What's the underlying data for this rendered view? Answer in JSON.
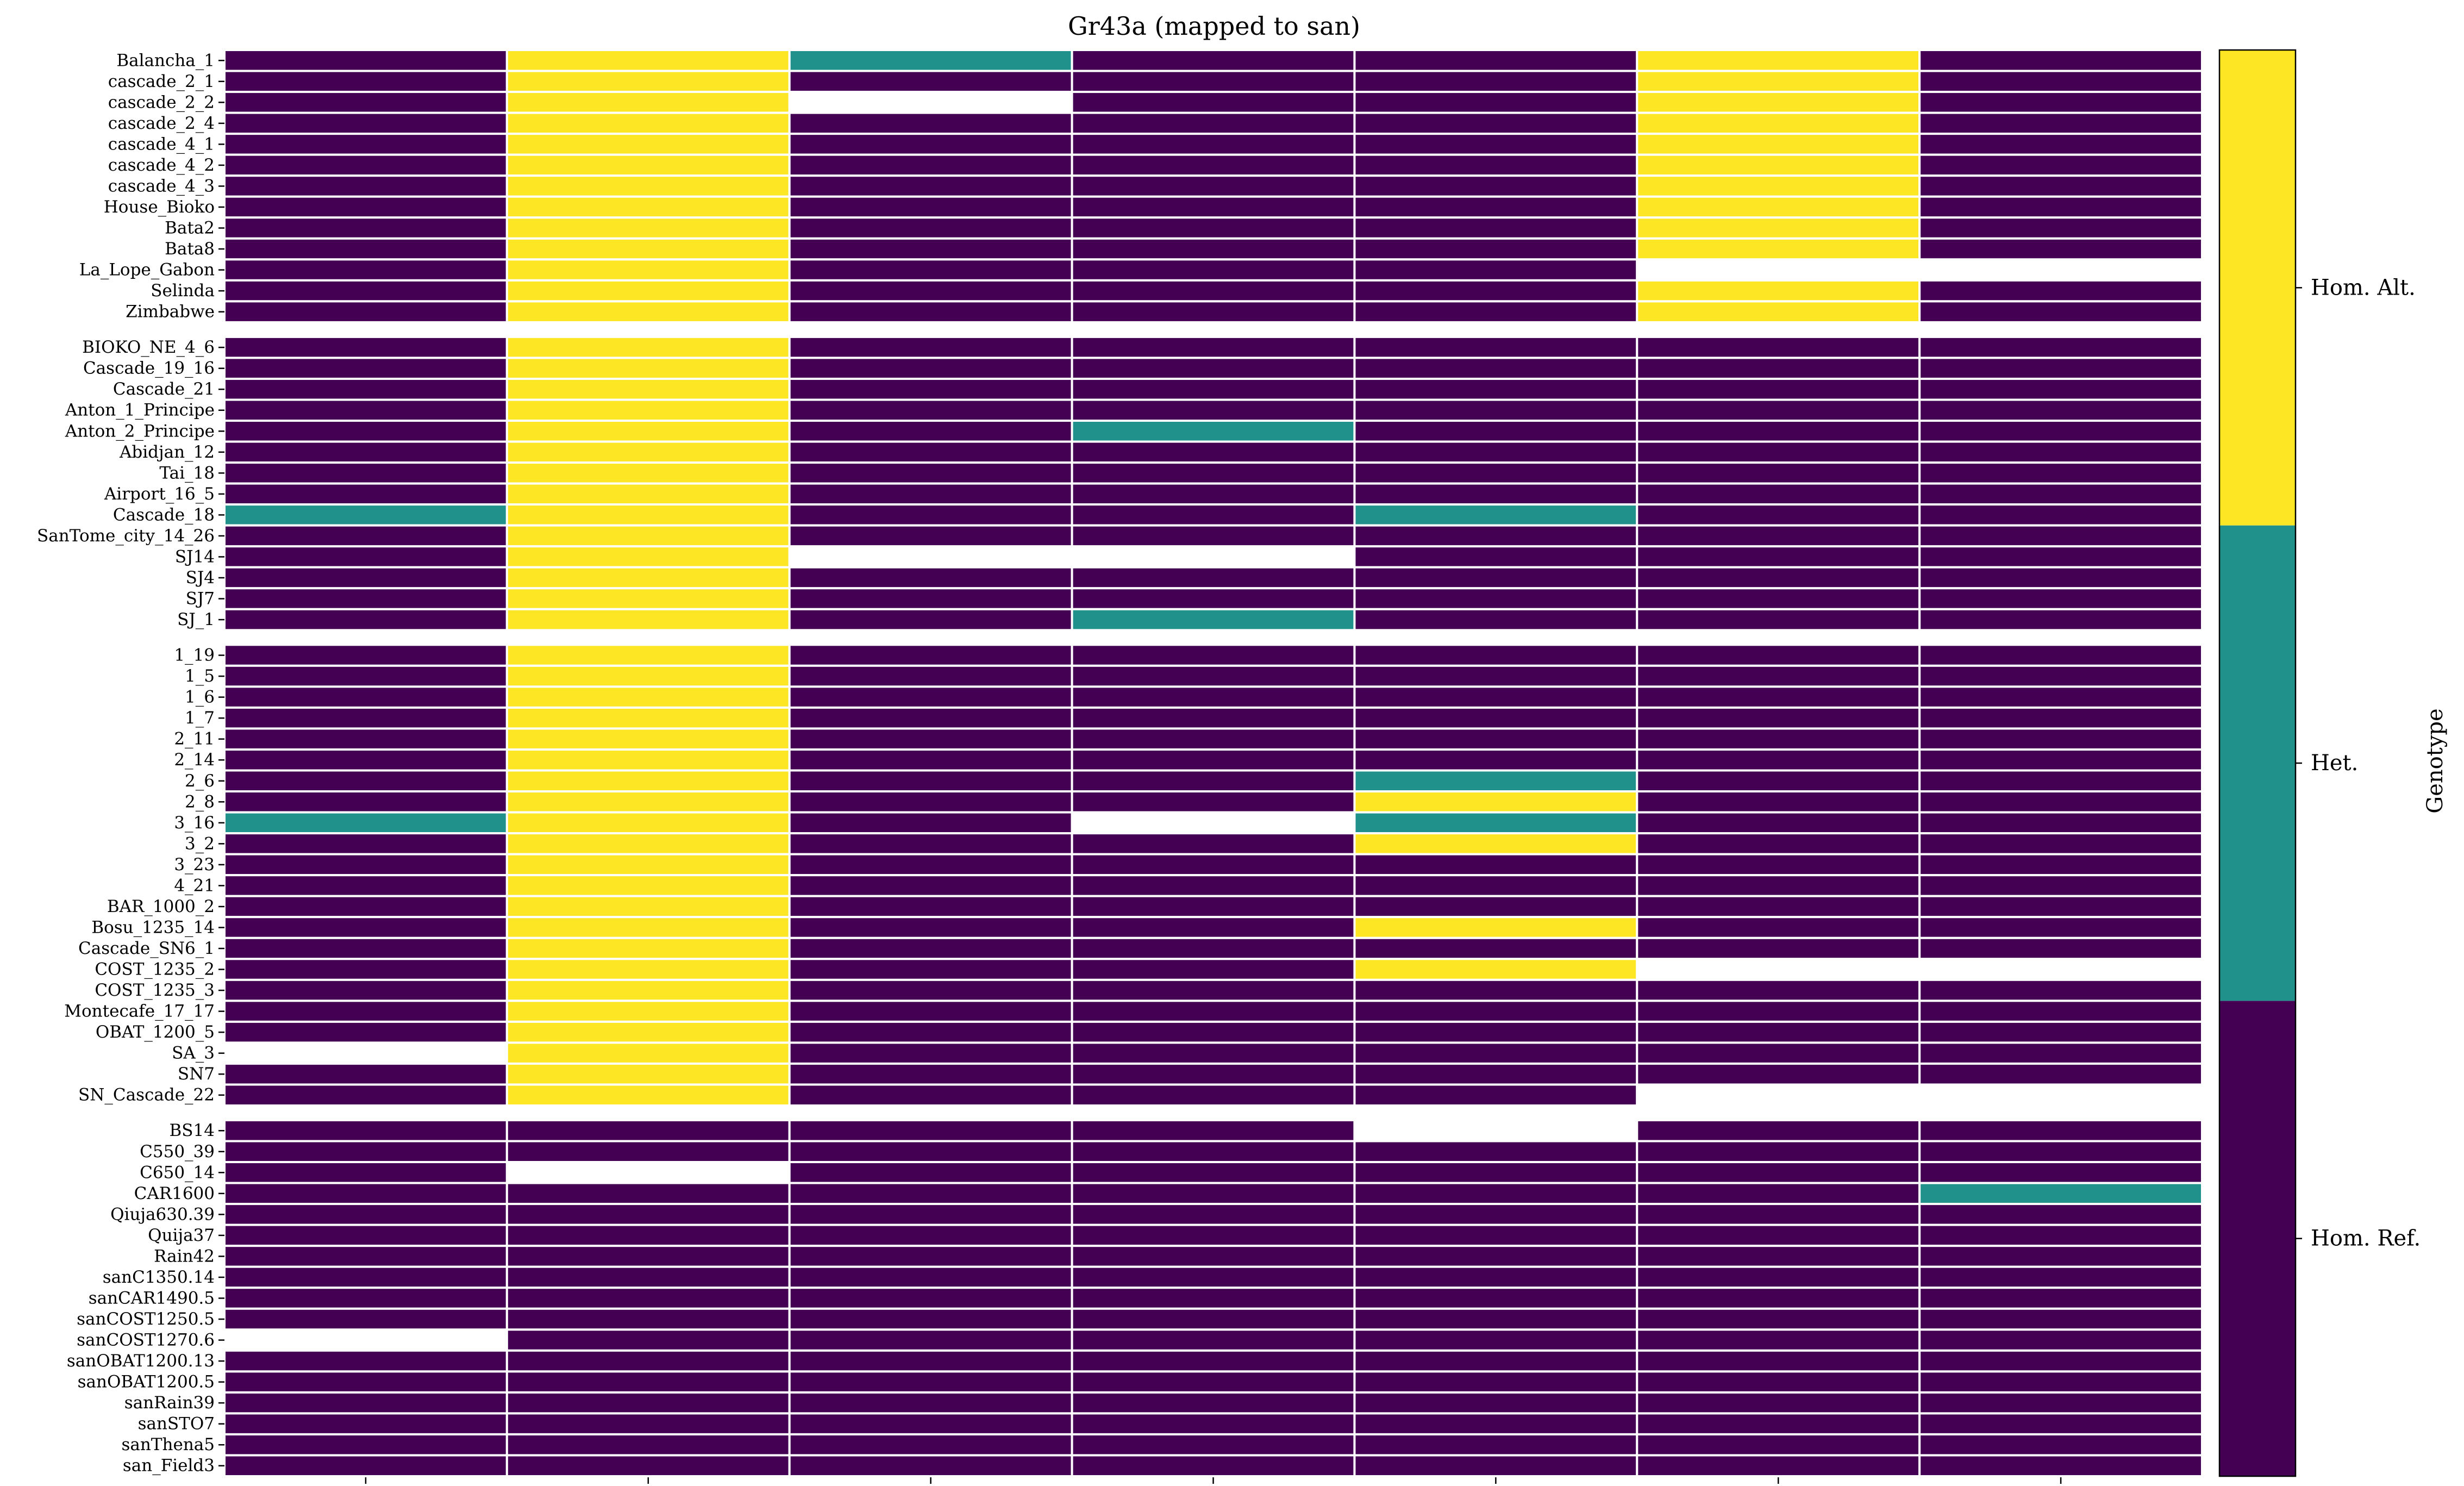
{
  "chart_data": {
    "type": "heatmap",
    "title": "Gr43a (mapped to san)",
    "xlabel": "",
    "ylabel": "",
    "x_tick_labels": [
      "",
      "",
      "",
      "",
      "",
      "",
      ""
    ],
    "groups": [
      {
        "rows": [
          {
            "label": "Balancha_1",
            "values": [
              0,
              2,
              1,
              0,
              0,
              2,
              0
            ]
          },
          {
            "label": "cascade_2_1",
            "values": [
              0,
              2,
              0,
              0,
              0,
              2,
              0
            ]
          },
          {
            "label": "cascade_2_2",
            "values": [
              0,
              2,
              null,
              0,
              0,
              2,
              0
            ]
          },
          {
            "label": "cascade_2_4",
            "values": [
              0,
              2,
              0,
              0,
              0,
              2,
              0
            ]
          },
          {
            "label": "cascade_4_1",
            "values": [
              0,
              2,
              0,
              0,
              0,
              2,
              0
            ]
          },
          {
            "label": "cascade_4_2",
            "values": [
              0,
              2,
              0,
              0,
              0,
              2,
              0
            ]
          },
          {
            "label": "cascade_4_3",
            "values": [
              0,
              2,
              0,
              0,
              0,
              2,
              0
            ]
          },
          {
            "label": "House_Bioko",
            "values": [
              0,
              2,
              0,
              0,
              0,
              2,
              0
            ]
          },
          {
            "label": "Bata2",
            "values": [
              0,
              2,
              0,
              0,
              0,
              2,
              0
            ]
          },
          {
            "label": "Bata8",
            "values": [
              0,
              2,
              0,
              0,
              0,
              2,
              0
            ]
          },
          {
            "label": "La_Lope_Gabon",
            "values": [
              0,
              2,
              0,
              0,
              0,
              null,
              null
            ]
          },
          {
            "label": "Selinda",
            "values": [
              0,
              2,
              0,
              0,
              0,
              2,
              0
            ]
          },
          {
            "label": "Zimbabwe",
            "values": [
              0,
              2,
              0,
              0,
              0,
              2,
              0
            ]
          }
        ]
      },
      {
        "rows": [
          {
            "label": "BIOKO_NE_4_6",
            "values": [
              0,
              2,
              0,
              0,
              0,
              0,
              0
            ]
          },
          {
            "label": "Cascade_19_16",
            "values": [
              0,
              2,
              0,
              0,
              0,
              0,
              0
            ]
          },
          {
            "label": "Cascade_21",
            "values": [
              0,
              2,
              0,
              0,
              0,
              0,
              0
            ]
          },
          {
            "label": "Anton_1_Principe",
            "values": [
              0,
              2,
              0,
              0,
              0,
              0,
              0
            ]
          },
          {
            "label": "Anton_2_Principe",
            "values": [
              0,
              2,
              0,
              1,
              0,
              0,
              0
            ]
          },
          {
            "label": "Abidjan_12",
            "values": [
              0,
              2,
              0,
              0,
              0,
              0,
              0
            ]
          },
          {
            "label": "Tai_18",
            "values": [
              0,
              2,
              0,
              0,
              0,
              0,
              0
            ]
          },
          {
            "label": "Airport_16_5",
            "values": [
              0,
              2,
              0,
              0,
              0,
              0,
              0
            ]
          },
          {
            "label": "Cascade_18",
            "values": [
              1,
              2,
              0,
              0,
              1,
              0,
              0
            ]
          },
          {
            "label": "SanTome_city_14_26",
            "values": [
              0,
              2,
              0,
              0,
              0,
              0,
              0
            ]
          },
          {
            "label": "SJ14",
            "values": [
              0,
              2,
              null,
              null,
              0,
              0,
              0
            ]
          },
          {
            "label": "SJ4",
            "values": [
              0,
              2,
              0,
              0,
              0,
              0,
              0
            ]
          },
          {
            "label": "SJ7",
            "values": [
              0,
              2,
              0,
              0,
              0,
              0,
              0
            ]
          },
          {
            "label": "SJ_1",
            "values": [
              0,
              2,
              0,
              1,
              0,
              0,
              0
            ]
          }
        ]
      },
      {
        "rows": [
          {
            "label": "1_19",
            "values": [
              0,
              2,
              0,
              0,
              0,
              0,
              0
            ]
          },
          {
            "label": "1_5",
            "values": [
              0,
              2,
              0,
              0,
              0,
              0,
              0
            ]
          },
          {
            "label": "1_6",
            "values": [
              0,
              2,
              0,
              0,
              0,
              0,
              0
            ]
          },
          {
            "label": "1_7",
            "values": [
              0,
              2,
              0,
              0,
              0,
              0,
              0
            ]
          },
          {
            "label": "2_11",
            "values": [
              0,
              2,
              0,
              0,
              0,
              0,
              0
            ]
          },
          {
            "label": "2_14",
            "values": [
              0,
              2,
              0,
              0,
              0,
              0,
              0
            ]
          },
          {
            "label": "2_6",
            "values": [
              0,
              2,
              0,
              0,
              1,
              0,
              0
            ]
          },
          {
            "label": "2_8",
            "values": [
              0,
              2,
              0,
              0,
              2,
              0,
              0
            ]
          },
          {
            "label": "3_16",
            "values": [
              1,
              2,
              0,
              null,
              1,
              0,
              0
            ]
          },
          {
            "label": "3_2",
            "values": [
              0,
              2,
              0,
              0,
              2,
              0,
              0
            ]
          },
          {
            "label": "3_23",
            "values": [
              0,
              2,
              0,
              0,
              0,
              0,
              0
            ]
          },
          {
            "label": "4_21",
            "values": [
              0,
              2,
              0,
              0,
              0,
              0,
              0
            ]
          },
          {
            "label": "BAR_1000_2",
            "values": [
              0,
              2,
              0,
              0,
              0,
              0,
              0
            ]
          },
          {
            "label": "Bosu_1235_14",
            "values": [
              0,
              2,
              0,
              0,
              2,
              0,
              0
            ]
          },
          {
            "label": "Cascade_SN6_1",
            "values": [
              0,
              2,
              0,
              0,
              0,
              0,
              0
            ]
          },
          {
            "label": "COST_1235_2",
            "values": [
              0,
              2,
              0,
              0,
              2,
              null,
              null
            ]
          },
          {
            "label": "COST_1235_3",
            "values": [
              0,
              2,
              0,
              0,
              0,
              0,
              0
            ]
          },
          {
            "label": "Montecafe_17_17",
            "values": [
              0,
              2,
              0,
              0,
              0,
              0,
              0
            ]
          },
          {
            "label": "OBAT_1200_5",
            "values": [
              0,
              2,
              0,
              0,
              0,
              0,
              0
            ]
          },
          {
            "label": "SA_3",
            "values": [
              null,
              2,
              0,
              0,
              0,
              0,
              0
            ]
          },
          {
            "label": "SN7",
            "values": [
              0,
              2,
              0,
              0,
              0,
              0,
              0
            ]
          },
          {
            "label": "SN_Cascade_22",
            "values": [
              0,
              2,
              0,
              0,
              0,
              null,
              null
            ]
          }
        ]
      },
      {
        "rows": [
          {
            "label": "BS14",
            "values": [
              0,
              0,
              0,
              0,
              null,
              0,
              0
            ]
          },
          {
            "label": "C550_39",
            "values": [
              0,
              0,
              0,
              0,
              0,
              0,
              0
            ]
          },
          {
            "label": "C650_14",
            "values": [
              0,
              null,
              0,
              0,
              0,
              0,
              0
            ]
          },
          {
            "label": "CAR1600",
            "values": [
              0,
              0,
              0,
              0,
              0,
              0,
              1
            ]
          },
          {
            "label": "Qiuja630.39",
            "values": [
              0,
              0,
              0,
              0,
              0,
              0,
              0
            ]
          },
          {
            "label": "Quija37",
            "values": [
              0,
              0,
              0,
              0,
              0,
              0,
              0
            ]
          },
          {
            "label": "Rain42",
            "values": [
              0,
              0,
              0,
              0,
              0,
              0,
              0
            ]
          },
          {
            "label": "sanC1350.14",
            "values": [
              0,
              0,
              0,
              0,
              0,
              0,
              0
            ]
          },
          {
            "label": "sanCAR1490.5",
            "values": [
              0,
              0,
              0,
              0,
              0,
              0,
              0
            ]
          },
          {
            "label": "sanCOST1250.5",
            "values": [
              0,
              0,
              0,
              0,
              0,
              0,
              0
            ]
          },
          {
            "label": "sanCOST1270.6",
            "values": [
              null,
              0,
              0,
              0,
              0,
              0,
              0
            ]
          },
          {
            "label": "sanOBAT1200.13",
            "values": [
              0,
              0,
              0,
              0,
              0,
              0,
              0
            ]
          },
          {
            "label": "sanOBAT1200.5",
            "values": [
              0,
              0,
              0,
              0,
              0,
              0,
              0
            ]
          },
          {
            "label": "sanRain39",
            "values": [
              0,
              0,
              0,
              0,
              0,
              0,
              0
            ]
          },
          {
            "label": "sanSTO7",
            "values": [
              0,
              0,
              0,
              0,
              0,
              0,
              0
            ]
          },
          {
            "label": "sanThena5",
            "values": [
              0,
              0,
              0,
              0,
              0,
              0,
              0
            ]
          },
          {
            "label": "san_Field3",
            "values": [
              0,
              0,
              0,
              0,
              0,
              0,
              0
            ]
          }
        ]
      }
    ],
    "categories": [
      {
        "value": 0,
        "label": "Hom. Ref.",
        "color": "#440154"
      },
      {
        "value": 1,
        "label": "Het.",
        "color": "#21918c"
      },
      {
        "value": 2,
        "label": "Hom. Alt.",
        "color": "#fde725"
      }
    ],
    "colorbar_label": "Genotype",
    "missing_color": "#ffffff",
    "cell_border_color": "#ffffff"
  }
}
